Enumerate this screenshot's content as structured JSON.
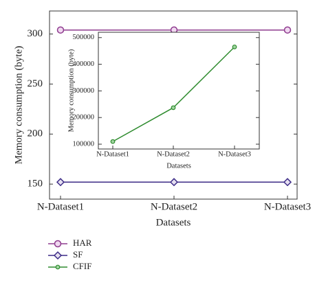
{
  "chart_data": [
    {
      "type": "line",
      "x_label": "Datasets",
      "y_label": "Memory consumption (byte)",
      "categories": [
        "N-Dataset1",
        "N-Dataset2",
        "N-Dataset3"
      ],
      "series": [
        {
          "name": "HAR",
          "color": "#8e3a8e",
          "marker": "circle",
          "values": [
            304,
            304,
            304
          ]
        },
        {
          "name": "SF",
          "color": "#3b2a86",
          "marker": "diamond",
          "values": [
            152,
            152,
            152
          ]
        }
      ],
      "ylim": [
        135,
        323
      ],
      "yticks": [
        150,
        200,
        250,
        300
      ]
    },
    {
      "type": "line",
      "x_label": "Datasets",
      "y_label": "Memory consumption (byte)",
      "categories": [
        "N-Dataset1",
        "N-Dataset2",
        "N-Dataset3"
      ],
      "series": [
        {
          "name": "CFIF",
          "color": "#2e8b2e",
          "marker": "dot",
          "values": [
            110000,
            237000,
            465000
          ]
        }
      ],
      "ylim": [
        82000,
        520000
      ],
      "yticks": [
        100000,
        200000,
        300000,
        400000,
        500000
      ]
    }
  ]
}
